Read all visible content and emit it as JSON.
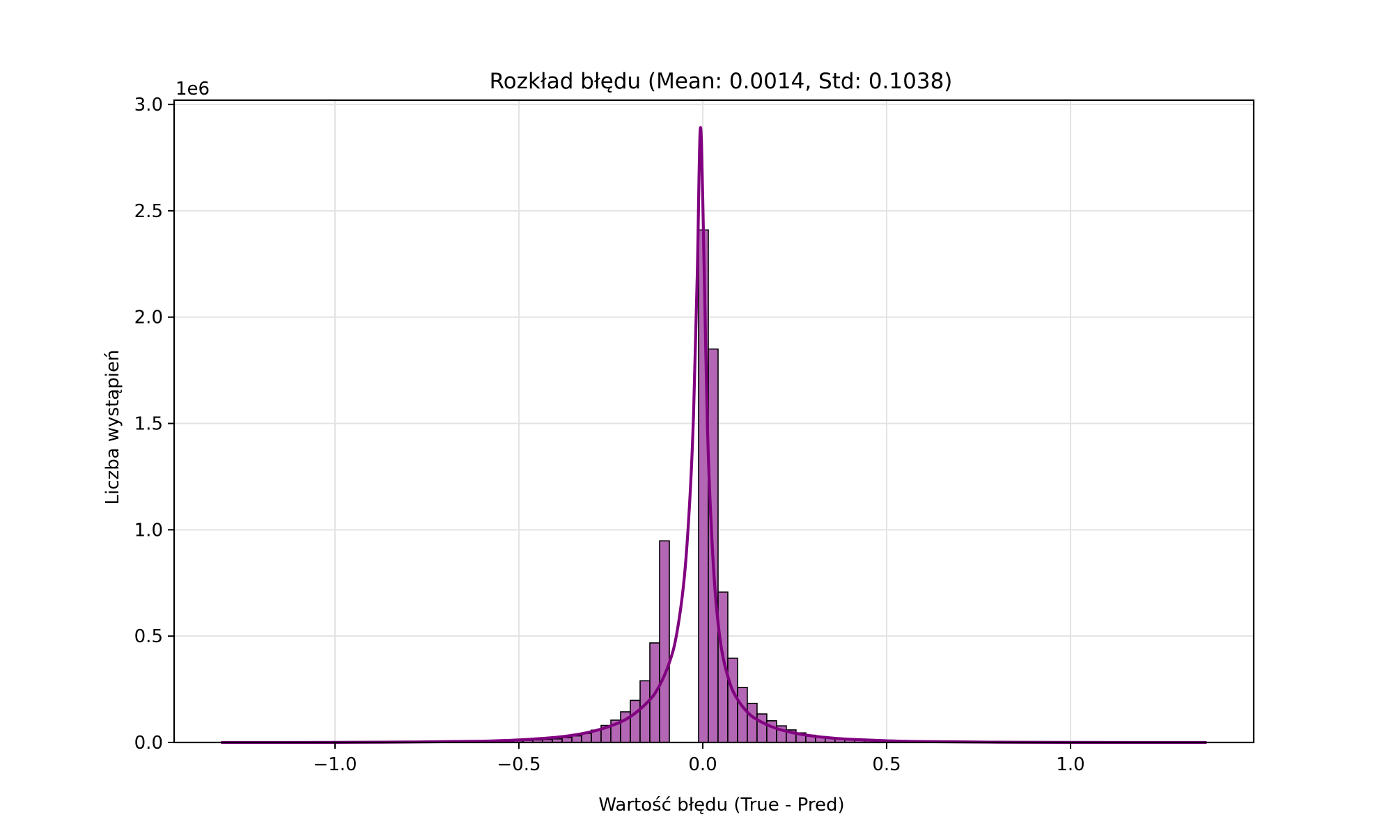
{
  "chart_data": {
    "type": "bar",
    "subtype": "histogram_with_kde",
    "title": "Rozkład błędu (Mean: 0.0014, Std: 0.1038)",
    "xlabel": "Wartość błędu (True - Pred)",
    "ylabel": "Liczba wystąpień",
    "y_offset_label": "1e6",
    "y_scale": 1000000,
    "xlim": [
      -1.4375,
      1.498
    ],
    "ylim": [
      0,
      3.02
    ],
    "grid": true,
    "legend": null,
    "x_ticks": [
      -1.0,
      -0.5,
      0.0,
      0.5,
      1.0
    ],
    "x_tick_labels": [
      "−1.0",
      "−0.5",
      "0.0",
      "0.5",
      "1.0"
    ],
    "y_ticks": [
      0.0,
      0.5,
      1.0,
      1.5,
      2.0,
      2.5,
      3.0
    ],
    "y_tick_labels": [
      "0.0",
      "0.5",
      "1.0",
      "1.5",
      "2.0",
      "2.5",
      "3.0"
    ],
    "colors": {
      "bar_fill": "#b366b3",
      "bar_edge": "#000000",
      "kde_line": "#800080",
      "grid": "#e3e3e3"
    },
    "histogram": {
      "bin_width": 0.0265,
      "first_bin_left": -0.01145,
      "center_bins_note": "bin index 0 starts at -0.01145; negative indices extend left",
      "bins": [
        {
          "index": -24,
          "value": 0.003
        },
        {
          "index": -23,
          "value": 0.004
        },
        {
          "index": -22,
          "value": 0.005
        },
        {
          "index": -21,
          "value": 0.006
        },
        {
          "index": -20,
          "value": 0.007
        },
        {
          "index": -19,
          "value": 0.008
        },
        {
          "index": -18,
          "value": 0.01
        },
        {
          "index": -17,
          "value": 0.012
        },
        {
          "index": -16,
          "value": 0.014
        },
        {
          "index": -15,
          "value": 0.017
        },
        {
          "index": -14,
          "value": 0.023
        },
        {
          "index": -13,
          "value": 0.031
        },
        {
          "index": -12,
          "value": 0.042
        },
        {
          "index": -11,
          "value": 0.058
        },
        {
          "index": -10,
          "value": 0.08
        },
        {
          "index": -9,
          "value": 0.105
        },
        {
          "index": -8,
          "value": 0.144
        },
        {
          "index": -7,
          "value": 0.198
        },
        {
          "index": -6,
          "value": 0.29
        },
        {
          "index": -5,
          "value": 0.468
        },
        {
          "index": -4,
          "value": 0.948
        },
        {
          "index": -1,
          "value": 0.0
        },
        {
          "index": 0,
          "value": 2.41
        },
        {
          "index": 1,
          "value": 1.85
        },
        {
          "index": 2,
          "value": 0.707
        },
        {
          "index": 3,
          "value": 0.396
        },
        {
          "index": 4,
          "value": 0.259
        },
        {
          "index": 5,
          "value": 0.184
        },
        {
          "index": 6,
          "value": 0.134
        },
        {
          "index": 7,
          "value": 0.102
        },
        {
          "index": 8,
          "value": 0.078
        },
        {
          "index": 9,
          "value": 0.059
        },
        {
          "index": 10,
          "value": 0.045
        },
        {
          "index": 11,
          "value": 0.034
        },
        {
          "index": 12,
          "value": 0.026
        },
        {
          "index": 13,
          "value": 0.02
        },
        {
          "index": 14,
          "value": 0.015
        },
        {
          "index": 15,
          "value": 0.012
        },
        {
          "index": 16,
          "value": 0.01
        },
        {
          "index": 17,
          "value": 0.008
        },
        {
          "index": 18,
          "value": 0.006
        },
        {
          "index": 19,
          "value": 0.005
        },
        {
          "index": 20,
          "value": 0.004
        },
        {
          "index": 21,
          "value": 0.003
        },
        {
          "index": 22,
          "value": 0.003
        }
      ]
    },
    "kde": {
      "x": [
        -1.31,
        -1.0,
        -0.8,
        -0.6,
        -0.5,
        -0.4,
        -0.35,
        -0.3,
        -0.25,
        -0.2,
        -0.15,
        -0.12,
        -0.09,
        -0.07,
        -0.05,
        -0.035,
        -0.025,
        -0.015,
        -0.007,
        0.0,
        0.008,
        0.015,
        0.025,
        0.035,
        0.05,
        0.07,
        0.09,
        0.12,
        0.15,
        0.2,
        0.25,
        0.3,
        0.35,
        0.4,
        0.5,
        0.6,
        0.8,
        1.0,
        1.37
      ],
      "y": [
        0.0,
        0.0005,
        0.002,
        0.006,
        0.012,
        0.024,
        0.035,
        0.052,
        0.078,
        0.118,
        0.19,
        0.26,
        0.38,
        0.52,
        0.78,
        1.15,
        1.55,
        2.2,
        2.88,
        2.55,
        1.85,
        1.35,
        0.95,
        0.68,
        0.45,
        0.3,
        0.215,
        0.145,
        0.105,
        0.066,
        0.044,
        0.03,
        0.021,
        0.015,
        0.008,
        0.004,
        0.0012,
        0.0004,
        0.0
      ]
    }
  }
}
